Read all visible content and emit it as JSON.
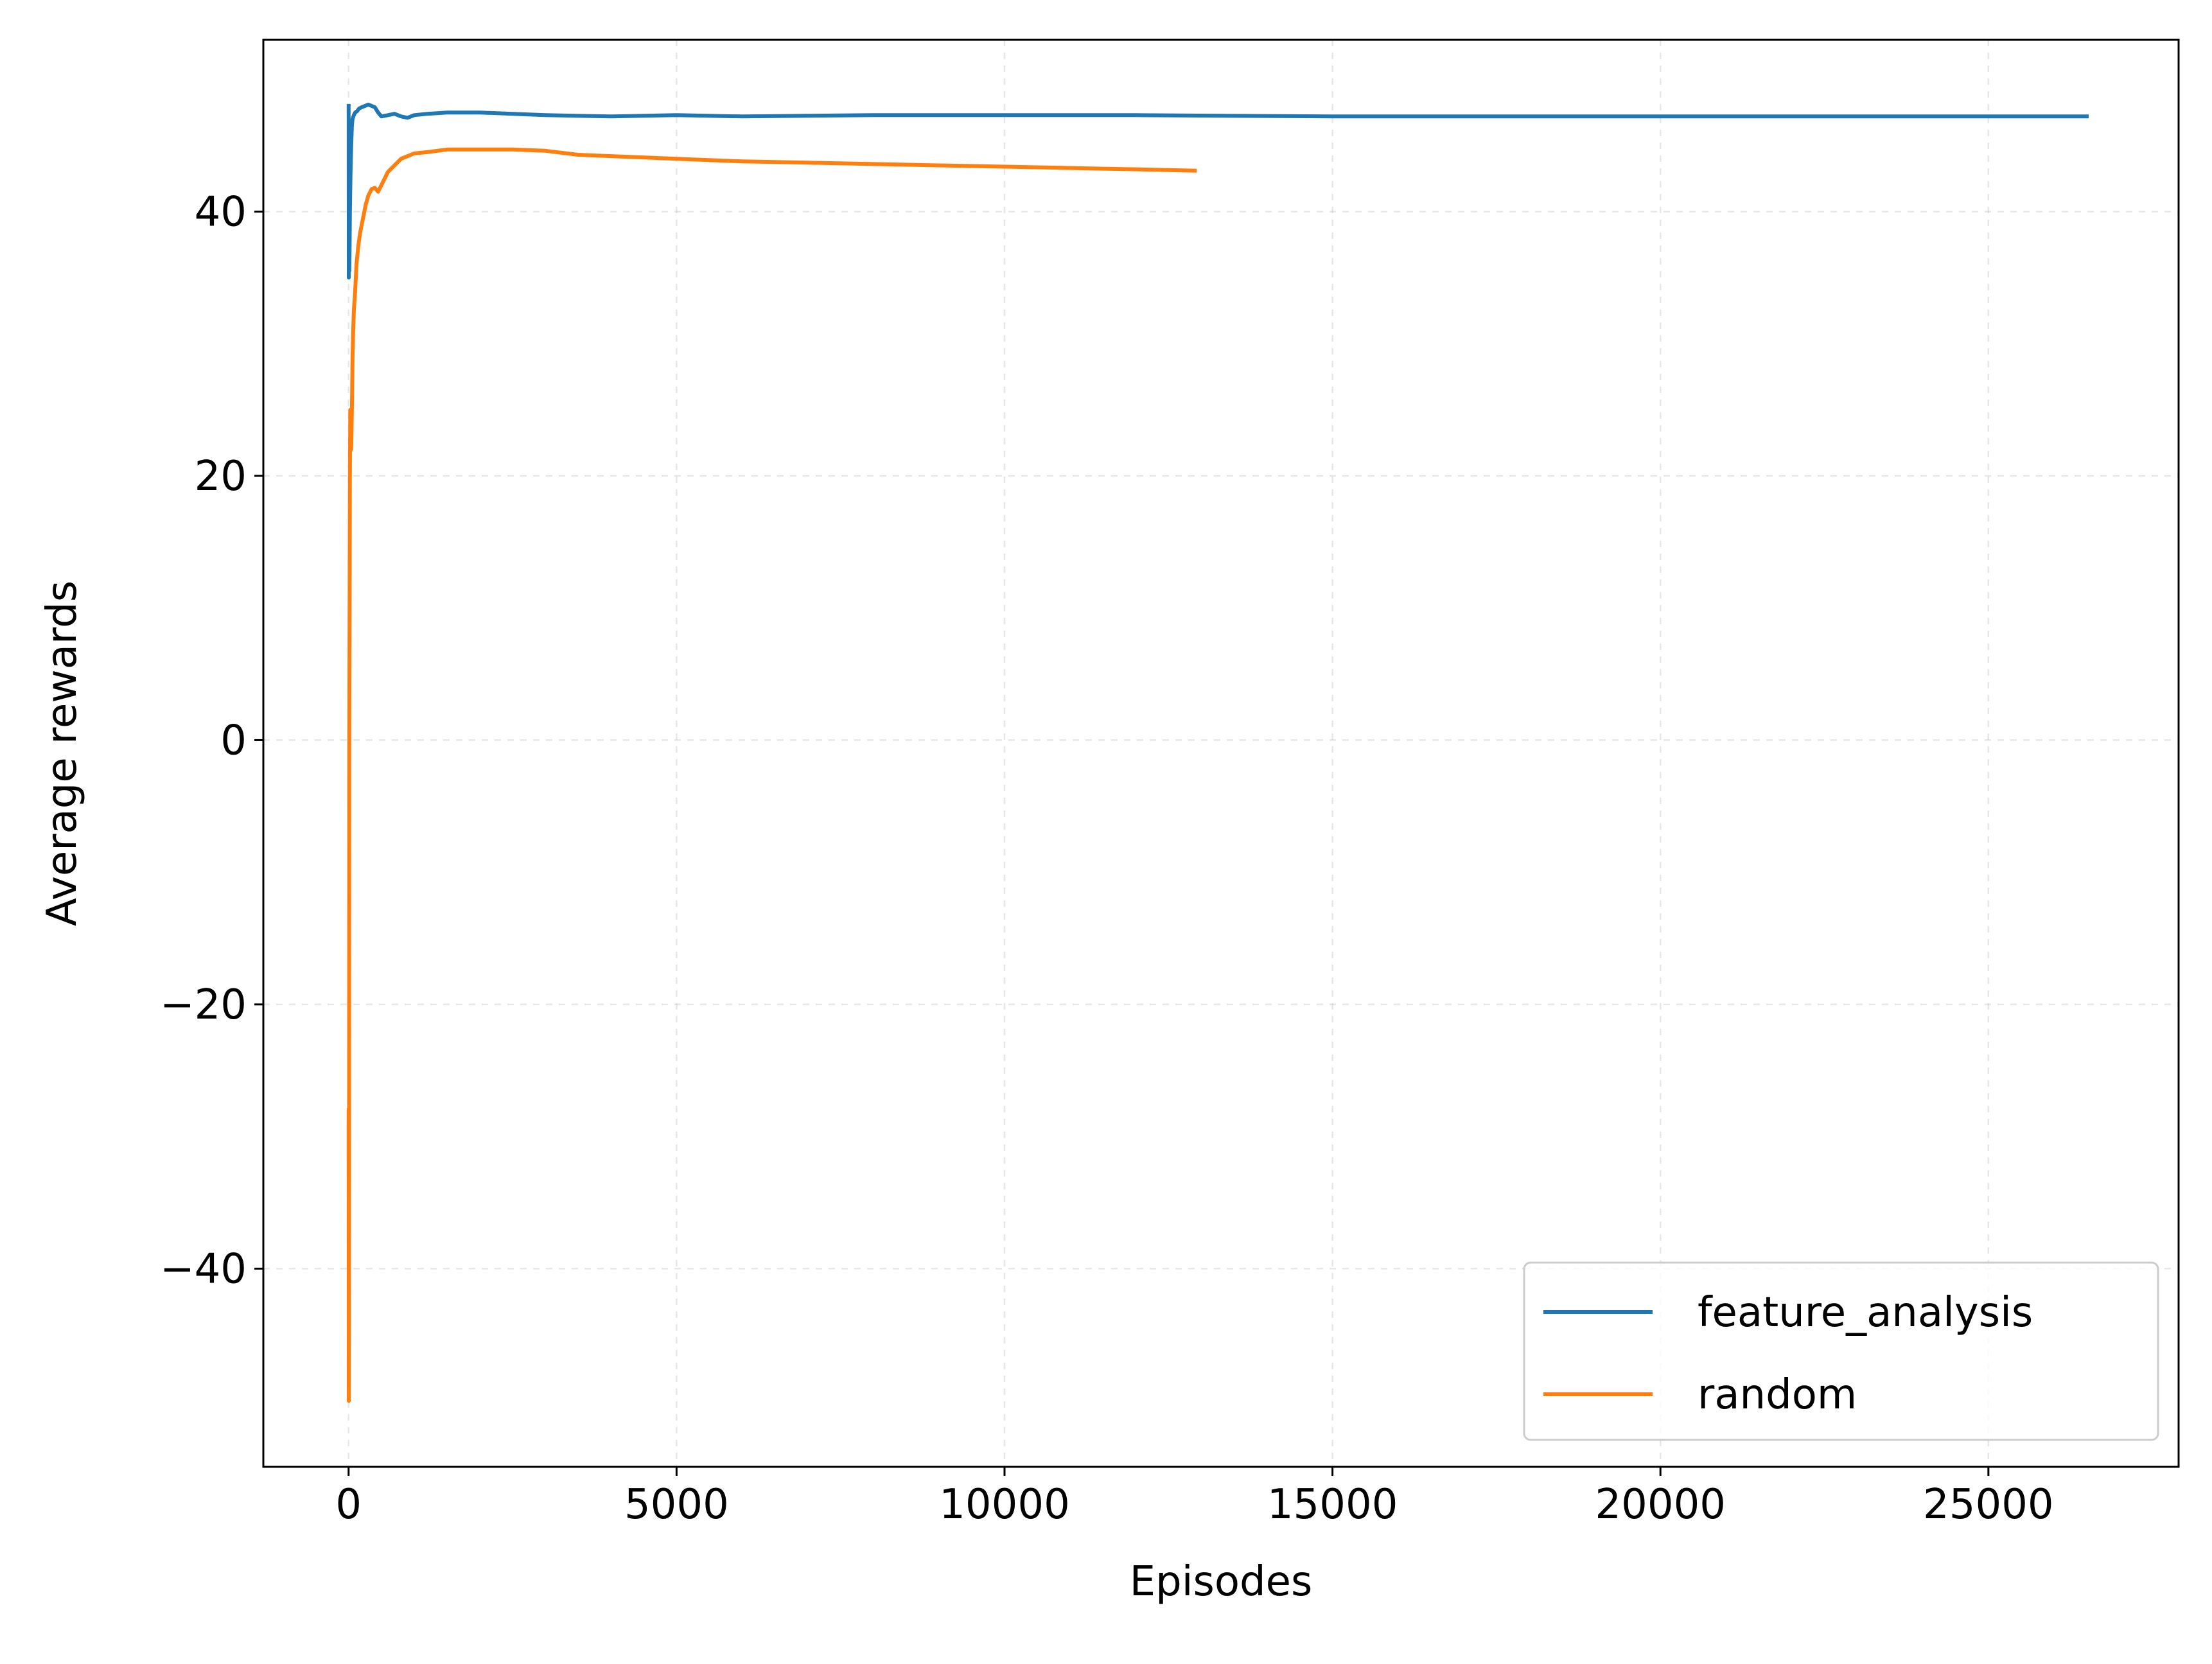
{
  "chart_data": {
    "type": "line",
    "title": "",
    "xlabel": "Episodes",
    "ylabel": "Average rewards",
    "xlim": [
      -1300,
      27900
    ],
    "ylim": [
      -55,
      53
    ],
    "xticks": [
      0,
      5000,
      10000,
      15000,
      20000,
      25000
    ],
    "xtick_labels": [
      "0",
      "5000",
      "10000",
      "15000",
      "20000",
      "25000"
    ],
    "yticks": [
      -40,
      -20,
      0,
      20,
      40
    ],
    "ytick_labels": [
      "−40",
      "−20",
      "0",
      "20",
      "40"
    ],
    "grid": true,
    "legend_position": "lower-right",
    "series": [
      {
        "name": "feature_analysis",
        "color": "#1f77b4",
        "x": [
          0,
          2,
          5,
          10,
          15,
          20,
          30,
          40,
          50,
          60,
          80,
          100,
          130,
          160,
          200,
          250,
          300,
          350,
          400,
          450,
          500,
          600,
          700,
          800,
          900,
          1000,
          1200,
          1500,
          2000,
          2500,
          3000,
          4000,
          5000,
          6000,
          8000,
          10000,
          12000,
          15000,
          18000,
          21000,
          24000,
          26500
        ],
        "y": [
          48,
          35,
          38,
          35.5,
          37,
          40,
          43,
          45,
          46.5,
          47,
          47.3,
          47.5,
          47.6,
          47.8,
          47.9,
          48,
          48.1,
          48,
          47.9,
          47.5,
          47.2,
          47.3,
          47.4,
          47.2,
          47.1,
          47.3,
          47.4,
          47.5,
          47.5,
          47.4,
          47.3,
          47.2,
          47.3,
          47.2,
          47.3,
          47.3,
          47.3,
          47.2,
          47.2,
          47.2,
          47.2,
          47.2
        ]
      },
      {
        "name": "random",
        "color": "#ff7f0e",
        "x": [
          0,
          2,
          4,
          6,
          8,
          10,
          15,
          20,
          25,
          30,
          40,
          50,
          60,
          70,
          80,
          100,
          120,
          150,
          180,
          220,
          260,
          300,
          350,
          400,
          450,
          500,
          600,
          700,
          800,
          1000,
          1200,
          1500,
          2000,
          2500,
          3000,
          3500,
          4000,
          5000,
          6000,
          7000,
          8000,
          9000,
          10000,
          11000,
          12000,
          12900
        ],
        "y": [
          -28,
          -50,
          -50,
          -40,
          -20,
          0,
          10,
          20,
          25,
          24,
          22,
          25,
          29,
          31,
          32.5,
          34,
          36,
          37.5,
          38.5,
          39.5,
          40.5,
          41.2,
          41.7,
          41.8,
          41.5,
          42,
          43,
          43.5,
          44,
          44.4,
          44.5,
          44.7,
          44.7,
          44.7,
          44.6,
          44.3,
          44.2,
          44,
          43.8,
          43.7,
          43.6,
          43.5,
          43.4,
          43.3,
          43.2,
          43.1
        ]
      }
    ]
  }
}
